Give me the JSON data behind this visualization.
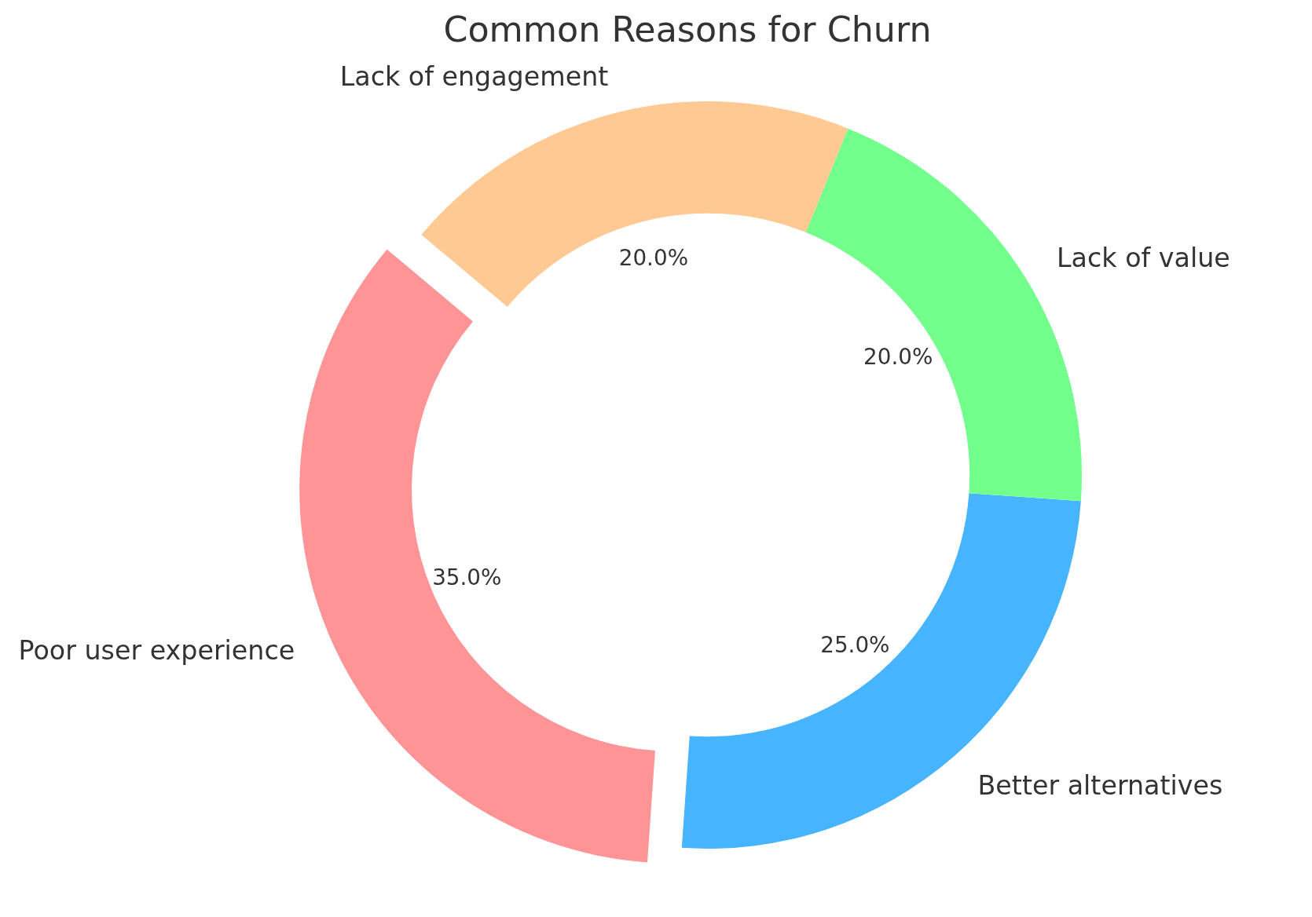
{
  "chart_data": {
    "type": "donut",
    "title": "Common Reasons for Churn",
    "categories": [
      "Poor user experience",
      "Better alternatives",
      "Lack of value",
      "Lack of engagement"
    ],
    "values": [
      35,
      25,
      20,
      20
    ],
    "colors": [
      "#ff9497",
      "#47b4ff",
      "#73ff8b",
      "#ffc993"
    ],
    "value_labels": [
      "35.0%",
      "25.0%",
      "20.0%",
      "20.0%"
    ]
  }
}
